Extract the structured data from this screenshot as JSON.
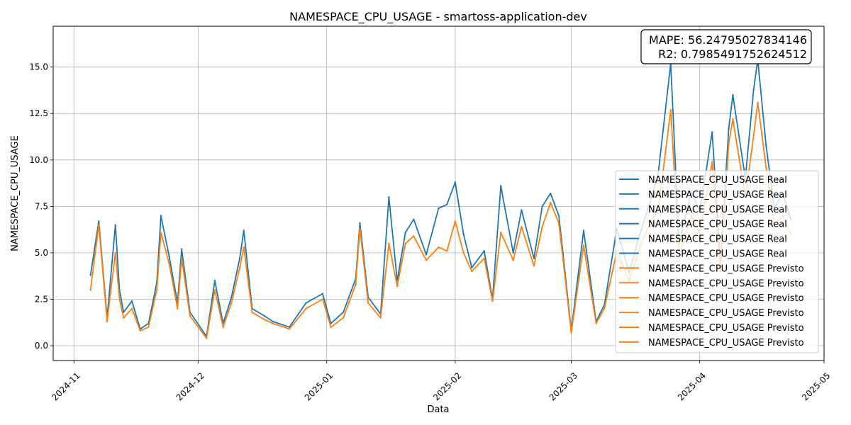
{
  "chart_data": {
    "type": "line",
    "title": "NAMESPACE_CPU_USAGE - smartoss-application-dev",
    "xlabel": "Data",
    "ylabel": "NAMESPACE_CPU_USAGE",
    "xlim": [
      "2024-10-27",
      "2025-05-01"
    ],
    "ylim": [
      -0.8,
      17.2
    ],
    "x_ticks": [
      "2024-11",
      "2024-12",
      "2025-01",
      "2025-02",
      "2025-03",
      "2025-04",
      "2025-05"
    ],
    "y_ticks": [
      "0.0",
      "2.5",
      "5.0",
      "7.5",
      "10.0",
      "12.5",
      "15.0"
    ],
    "y_tick_values": [
      0,
      2.5,
      5,
      7.5,
      10,
      12.5,
      15
    ],
    "grid": true,
    "annotation": {
      "lines": [
        "MAPE: 56.24795027834146",
        "R2: 0.7985491752624512"
      ],
      "placement": "top-right"
    },
    "legend": {
      "placement": "lower-right",
      "entries": [
        {
          "label": "NAMESPACE_CPU_USAGE Real",
          "color": "#1f77b4"
        },
        {
          "label": "NAMESPACE_CPU_USAGE Real",
          "color": "#1f77b4"
        },
        {
          "label": "NAMESPACE_CPU_USAGE Real",
          "color": "#1f77b4"
        },
        {
          "label": "NAMESPACE_CPU_USAGE Real",
          "color": "#1f77b4"
        },
        {
          "label": "NAMESPACE_CPU_USAGE Real",
          "color": "#1f77b4"
        },
        {
          "label": "NAMESPACE_CPU_USAGE Real",
          "color": "#1f77b4"
        },
        {
          "label": "NAMESPACE_CPU_USAGE Previsto",
          "color": "#ff7f0e"
        },
        {
          "label": "NAMESPACE_CPU_USAGE Previsto",
          "color": "#ff7f0e"
        },
        {
          "label": "NAMESPACE_CPU_USAGE Previsto",
          "color": "#ff7f0e"
        },
        {
          "label": "NAMESPACE_CPU_USAGE Previsto",
          "color": "#ff7f0e"
        },
        {
          "label": "NAMESPACE_CPU_USAGE Previsto",
          "color": "#ff7f0e"
        },
        {
          "label": "NAMESPACE_CPU_USAGE Previsto",
          "color": "#ff7f0e"
        }
      ]
    },
    "series": [
      {
        "label": "NAMESPACE_CPU_USAGE Real",
        "color": "#1f77b4",
        "x": [
          "2024-11-05",
          "2024-11-07",
          "2024-11-09",
          "2024-11-11",
          "2024-11-12",
          "2024-11-13",
          "2024-11-15",
          "2024-11-17",
          "2024-11-19",
          "2024-11-21",
          "2024-11-22",
          "2024-11-24",
          "2024-11-26",
          "2024-11-27",
          "2024-11-29",
          "2024-12-03",
          "2024-12-05",
          "2024-12-07",
          "2024-12-09",
          "2024-12-11",
          "2024-12-12",
          "2024-12-14",
          "2024-12-17",
          "2024-12-19",
          "2024-12-23",
          "2024-12-27",
          "2024-12-31",
          "2025-01-02",
          "2025-01-05",
          "2025-01-08",
          "2025-01-09",
          "2025-01-11",
          "2025-01-14",
          "2025-01-16",
          "2025-01-18",
          "2025-01-20",
          "2025-01-22",
          "2025-01-25",
          "2025-01-28",
          "2025-01-30",
          "2025-02-01",
          "2025-02-03",
          "2025-02-05",
          "2025-02-08",
          "2025-02-10",
          "2025-02-12",
          "2025-02-15",
          "2025-02-17",
          "2025-02-20",
          "2025-02-22",
          "2025-02-24",
          "2025-02-26",
          "2025-02-27",
          "2025-03-01",
          "2025-03-04",
          "2025-03-07",
          "2025-03-09",
          "2025-03-12",
          "2025-03-15",
          "2025-03-17",
          "2025-03-20",
          "2025-03-22",
          "2025-03-25",
          "2025-03-27",
          "2025-03-30",
          "2025-04-01",
          "2025-04-04",
          "2025-04-06",
          "2025-04-08",
          "2025-04-09",
          "2025-04-12",
          "2025-04-14",
          "2025-04-15",
          "2025-04-17",
          "2025-04-19",
          "2025-04-21",
          "2025-04-23"
        ],
        "values": [
          3.8,
          6.7,
          1.5,
          6.5,
          3.0,
          1.8,
          2.4,
          0.9,
          1.2,
          3.4,
          7.0,
          4.8,
          2.3,
          5.2,
          1.8,
          0.5,
          3.5,
          1.2,
          2.6,
          4.7,
          6.2,
          2.0,
          1.6,
          1.3,
          1.0,
          2.3,
          2.8,
          1.2,
          1.8,
          3.6,
          6.6,
          2.6,
          1.7,
          8.0,
          3.5,
          6.1,
          6.8,
          4.9,
          7.4,
          7.6,
          8.8,
          6.0,
          4.2,
          5.1,
          2.5,
          8.6,
          5.0,
          7.3,
          4.7,
          7.5,
          8.2,
          7.0,
          5.0,
          0.8,
          6.2,
          1.3,
          2.2,
          6.3,
          3.9,
          5.6,
          7.7,
          9.3,
          15.2,
          5.5,
          8.3,
          7.2,
          11.5,
          4.5,
          11.7,
          13.5,
          9.0,
          13.8,
          15.4,
          10.8,
          7.4,
          8.2,
          6.8
        ]
      },
      {
        "label": "NAMESPACE_CPU_USAGE Previsto",
        "color": "#ff7f0e",
        "x": [
          "2024-11-05",
          "2024-11-07",
          "2024-11-09",
          "2024-11-11",
          "2024-11-12",
          "2024-11-13",
          "2024-11-15",
          "2024-11-17",
          "2024-11-19",
          "2024-11-21",
          "2024-11-22",
          "2024-11-24",
          "2024-11-26",
          "2024-11-27",
          "2024-11-29",
          "2024-12-03",
          "2024-12-05",
          "2024-12-07",
          "2024-12-09",
          "2024-12-11",
          "2024-12-12",
          "2024-12-14",
          "2024-12-17",
          "2024-12-19",
          "2024-12-23",
          "2024-12-27",
          "2024-12-31",
          "2025-01-02",
          "2025-01-05",
          "2025-01-08",
          "2025-01-09",
          "2025-01-11",
          "2025-01-14",
          "2025-01-16",
          "2025-01-18",
          "2025-01-20",
          "2025-01-22",
          "2025-01-25",
          "2025-01-28",
          "2025-01-30",
          "2025-02-01",
          "2025-02-03",
          "2025-02-05",
          "2025-02-08",
          "2025-02-10",
          "2025-02-12",
          "2025-02-15",
          "2025-02-17",
          "2025-02-20",
          "2025-02-22",
          "2025-02-24",
          "2025-02-26",
          "2025-02-27",
          "2025-03-01",
          "2025-03-04",
          "2025-03-07",
          "2025-03-09",
          "2025-03-12",
          "2025-03-15",
          "2025-03-17",
          "2025-03-20",
          "2025-03-22",
          "2025-03-25",
          "2025-03-27",
          "2025-03-30",
          "2025-04-01",
          "2025-04-04",
          "2025-04-06",
          "2025-04-08",
          "2025-04-09",
          "2025-04-12",
          "2025-04-14",
          "2025-04-15",
          "2025-04-17",
          "2025-04-19",
          "2025-04-21",
          "2025-04-23"
        ],
        "values": [
          3.0,
          6.5,
          1.3,
          5.0,
          2.5,
          1.5,
          2.0,
          0.8,
          1.0,
          3.0,
          6.1,
          4.4,
          2.0,
          4.7,
          1.6,
          0.4,
          3.0,
          1.0,
          2.3,
          4.2,
          5.3,
          1.8,
          1.4,
          1.2,
          0.9,
          2.0,
          2.5,
          1.0,
          1.5,
          3.3,
          6.3,
          2.3,
          1.5,
          5.5,
          3.2,
          5.5,
          5.9,
          4.6,
          5.3,
          5.1,
          6.7,
          5.0,
          4.0,
          4.7,
          2.4,
          6.1,
          4.6,
          6.4,
          4.3,
          6.4,
          7.7,
          6.6,
          4.7,
          0.7,
          5.4,
          1.2,
          2.0,
          5.1,
          3.5,
          5.0,
          6.6,
          7.3,
          12.7,
          4.9,
          7.0,
          6.0,
          9.9,
          4.0,
          10.9,
          12.2,
          8.0,
          11.3,
          13.1,
          9.6,
          6.5,
          7.0,
          6.0
        ]
      }
    ]
  }
}
